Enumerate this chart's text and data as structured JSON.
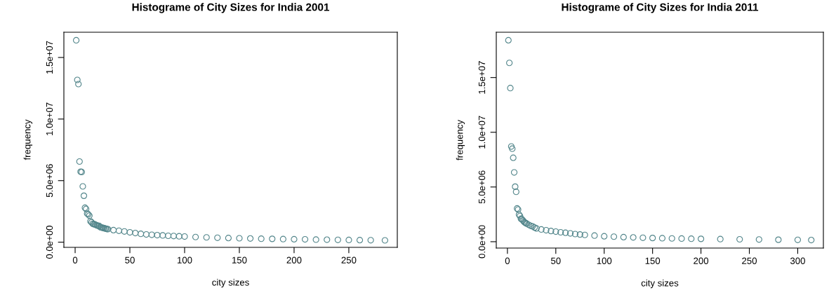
{
  "chart_data": [
    {
      "type": "scatter",
      "title": "Histograme of City Sizes for India 2001",
      "xlabel": "city sizes",
      "ylabel": "frequency",
      "marker": "circle",
      "grid": false,
      "legend": false,
      "xlim": [
        -10.28,
        294.28
      ],
      "xticks": [
        0,
        50,
        100,
        150,
        200,
        250
      ],
      "ylim": [
        -420000,
        17050000
      ],
      "yticks": [
        {
          "value": 0,
          "label": "0.0e+00"
        },
        {
          "value": 5000000,
          "label": "5.0e+06"
        },
        {
          "value": 10000000,
          "label": "1.0e+07"
        },
        {
          "value": 15000000,
          "label": "1.5e+07"
        }
      ],
      "series": [
        {
          "color": "#53868b",
          "x": [
            1,
            2,
            3,
            4,
            5,
            6,
            7,
            8,
            9,
            10,
            11,
            12,
            13,
            14,
            15,
            16,
            17,
            18,
            19,
            20,
            21,
            22,
            23,
            24,
            25,
            26,
            27,
            28,
            29,
            30,
            35,
            40,
            45,
            50,
            55,
            60,
            65,
            70,
            75,
            80,
            85,
            90,
            95,
            100,
            110,
            120,
            130,
            140,
            150,
            160,
            170,
            180,
            190,
            200,
            210,
            220,
            230,
            240,
            250,
            260,
            270,
            283
          ],
          "values": [
            16400000,
            13180000,
            12840000,
            6550000,
            5720000,
            5700000,
            4530000,
            3770000,
            2800000,
            2700000,
            2320000,
            2260000,
            2150000,
            1700000,
            1620000,
            1500000,
            1460000,
            1450000,
            1400000,
            1360000,
            1330000,
            1320000,
            1210000,
            1200000,
            1170000,
            1150000,
            1120000,
            1100000,
            1070000,
            1060000,
            980000,
            930000,
            870000,
            800000,
            740000,
            680000,
            630000,
            600000,
            570000,
            550000,
            520000,
            500000,
            480000,
            460000,
            420000,
            390000,
            360000,
            340000,
            320000,
            300000,
            280000,
            270000,
            250000,
            240000,
            230000,
            210000,
            200000,
            190000,
            180000,
            170000,
            160000,
            150000
          ]
        }
      ]
    },
    {
      "type": "scatter",
      "title": "Histograme of City Sizes for India 2011",
      "xlabel": "city sizes",
      "ylabel": "frequency",
      "marker": "circle",
      "grid": false,
      "legend": false,
      "xlim": [
        -11.52,
        326.52
      ],
      "xticks": [
        0,
        50,
        100,
        150,
        200,
        250,
        300
      ],
      "ylim": [
        -580000,
        19140000
      ],
      "yticks": [
        {
          "value": 0,
          "label": "0.0e+00"
        },
        {
          "value": 5000000,
          "label": "5.0e+06"
        },
        {
          "value": 10000000,
          "label": "1.0e+07"
        },
        {
          "value": 15000000,
          "label": "1.5e+07"
        }
      ],
      "series": [
        {
          "color": "#53868b",
          "x": [
            1,
            2,
            3,
            4,
            5,
            6,
            7,
            8,
            9,
            10,
            11,
            12,
            13,
            14,
            15,
            16,
            17,
            18,
            19,
            20,
            22,
            24,
            26,
            28,
            30,
            35,
            40,
            45,
            50,
            55,
            60,
            65,
            70,
            75,
            80,
            90,
            100,
            110,
            120,
            130,
            140,
            150,
            160,
            170,
            180,
            190,
            200,
            220,
            240,
            260,
            280,
            300,
            314
          ],
          "values": [
            18410000,
            16340000,
            14040000,
            8700000,
            8500000,
            7670000,
            6330000,
            5030000,
            4560000,
            3040000,
            2940000,
            2470000,
            2350000,
            2100000,
            2050000,
            1950000,
            1840000,
            1750000,
            1700000,
            1650000,
            1550000,
            1450000,
            1400000,
            1300000,
            1220000,
            1120000,
            1050000,
            980000,
            920000,
            860000,
            820000,
            760000,
            700000,
            660000,
            620000,
            560000,
            500000,
            460000,
            420000,
            390000,
            360000,
            340000,
            320000,
            300000,
            290000,
            270000,
            260000,
            240000,
            220000,
            200000,
            180000,
            170000,
            150000
          ]
        }
      ]
    }
  ]
}
